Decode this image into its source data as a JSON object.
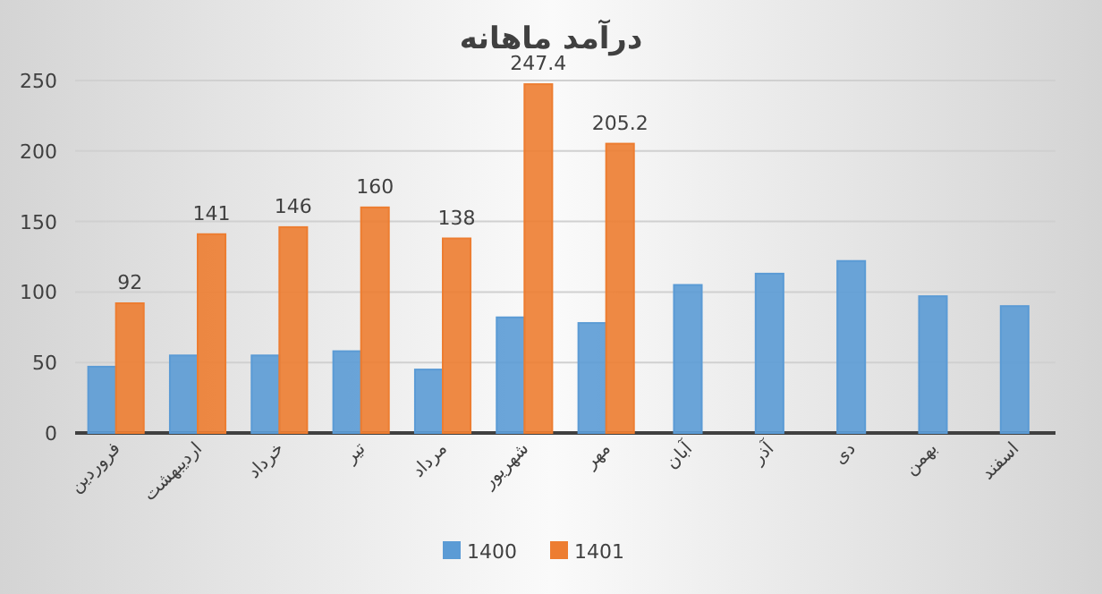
{
  "chart_data": {
    "type": "bar",
    "title": "درآمد ماهانه",
    "categories": [
      "فروردین",
      "اردیبهشت",
      "خرداد",
      "تیر",
      "مرداد",
      "شهریور",
      "مهر",
      "آبان",
      "آذر",
      "دی",
      "بهمن",
      "اسفند"
    ],
    "series": [
      {
        "name": "1400",
        "color": "#5b9bd5",
        "values": [
          47,
          55,
          55,
          58,
          45,
          82,
          78,
          105,
          113,
          122,
          97,
          90
        ]
      },
      {
        "name": "1401",
        "color": "#ed7d31",
        "values": [
          92,
          141,
          146,
          160,
          138,
          247.4,
          205.2,
          null,
          null,
          null,
          null,
          null
        ],
        "value_labels": [
          "92",
          "141",
          "146",
          "160",
          "138",
          "247.4",
          "205.2",
          null,
          null,
          null,
          null,
          null
        ]
      }
    ],
    "ylim": [
      0,
      250
    ],
    "yticks": [
      0,
      50,
      100,
      150,
      200,
      250
    ],
    "grid": "y",
    "legend": "bottom"
  }
}
